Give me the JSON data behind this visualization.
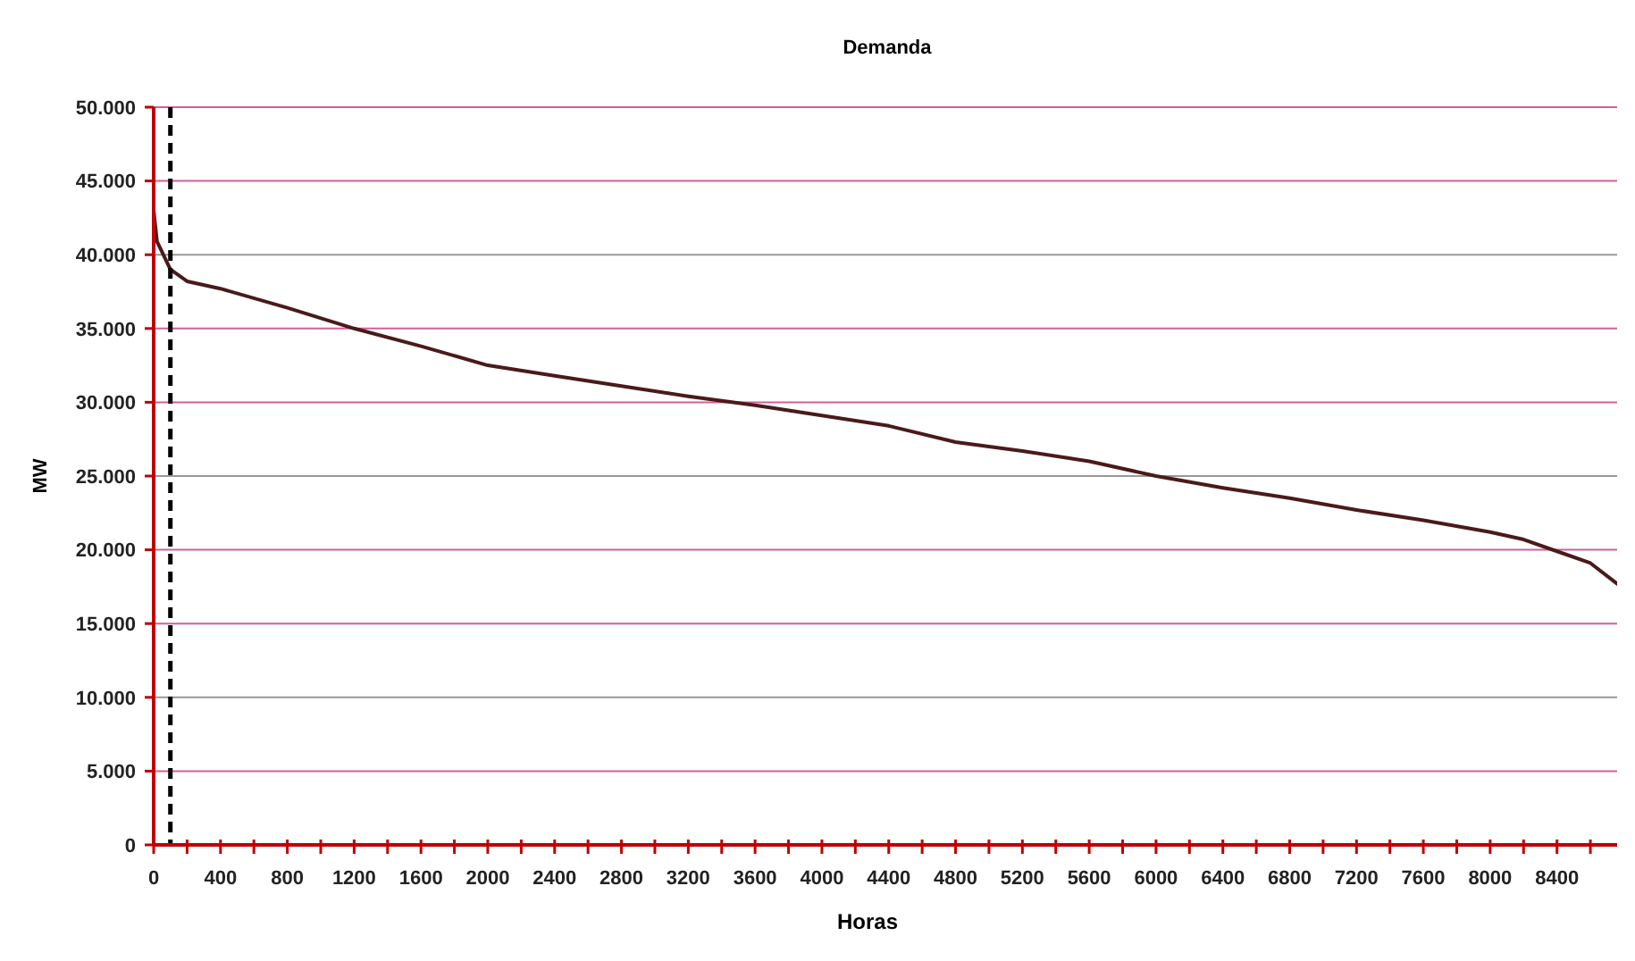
{
  "chart_data": {
    "type": "line",
    "title": "Demanda",
    "xlabel": "Horas",
    "ylabel": "MW",
    "x": [
      0,
      20,
      100,
      200,
      400,
      800,
      1200,
      1600,
      2000,
      2400,
      2800,
      3200,
      3600,
      4000,
      4400,
      4800,
      5200,
      5600,
      6000,
      6400,
      6800,
      7200,
      7600,
      8000,
      8200,
      8400,
      8600,
      8760
    ],
    "series": [
      {
        "color": "#4a1a1a",
        "values": [
          43000,
          40900,
          39000,
          38200,
          37700,
          36400,
          35000,
          33800,
          32500,
          31800,
          31100,
          30400,
          29800,
          29100,
          28400,
          27300,
          26700,
          26000,
          25000,
          24200,
          23500,
          22700,
          22000,
          21200,
          20700,
          19900,
          19100,
          17700
        ]
      }
    ],
    "xlim": [
      0,
      8760
    ],
    "xticks": [
      0,
      {
        "value": 200,
        "label": null
      },
      400,
      {
        "value": 600,
        "label": null
      },
      800,
      {
        "value": 1000,
        "label": null
      },
      1200,
      {
        "value": 1400,
        "label": null
      },
      1600,
      {
        "value": 1800,
        "label": null
      },
      2000,
      {
        "value": 2200,
        "label": null
      },
      2400,
      {
        "value": 2600,
        "label": null
      },
      2800,
      {
        "value": 3000,
        "label": null
      },
      3200,
      {
        "value": 3400,
        "label": null
      },
      3600,
      {
        "value": 3800,
        "label": null
      },
      4000,
      {
        "value": 4200,
        "label": null
      },
      4400,
      {
        "value": 4600,
        "label": null
      },
      4800,
      {
        "value": 5000,
        "label": null
      },
      5200,
      {
        "value": 5400,
        "label": null
      },
      5600,
      {
        "value": 5800,
        "label": null
      },
      6000,
      {
        "value": 6200,
        "label": null
      },
      6400,
      {
        "value": 6600,
        "label": null
      },
      6800,
      {
        "value": 7000,
        "label": null
      },
      7200,
      {
        "value": 7400,
        "label": null
      },
      7600,
      {
        "value": 7800,
        "label": null
      },
      8000,
      {
        "value": 8200,
        "label": null
      },
      8400,
      {
        "value": 8600,
        "label": null
      }
    ],
    "ylim": [
      0,
      50000
    ],
    "yticks": [
      {
        "value": 0,
        "label": "0"
      },
      {
        "value": 5000,
        "label": "5.000"
      },
      {
        "value": 10000,
        "label": "10.000"
      },
      {
        "value": 15000,
        "label": "15.000"
      },
      {
        "value": 20000,
        "label": "20.000"
      },
      {
        "value": 25000,
        "label": "25.000"
      },
      {
        "value": 30000,
        "label": "30.000"
      },
      {
        "value": 35000,
        "label": "35.000"
      },
      {
        "value": 40000,
        "label": "40.000"
      },
      {
        "value": 45000,
        "label": "45.000"
      },
      {
        "value": 50000,
        "label": "50.000"
      }
    ],
    "grid": "y",
    "marker": "none",
    "line_style": "solid",
    "ref_lines": [
      {
        "axis": "x",
        "value": 100,
        "color": "#000000",
        "line_style": "dashed"
      }
    ]
  }
}
